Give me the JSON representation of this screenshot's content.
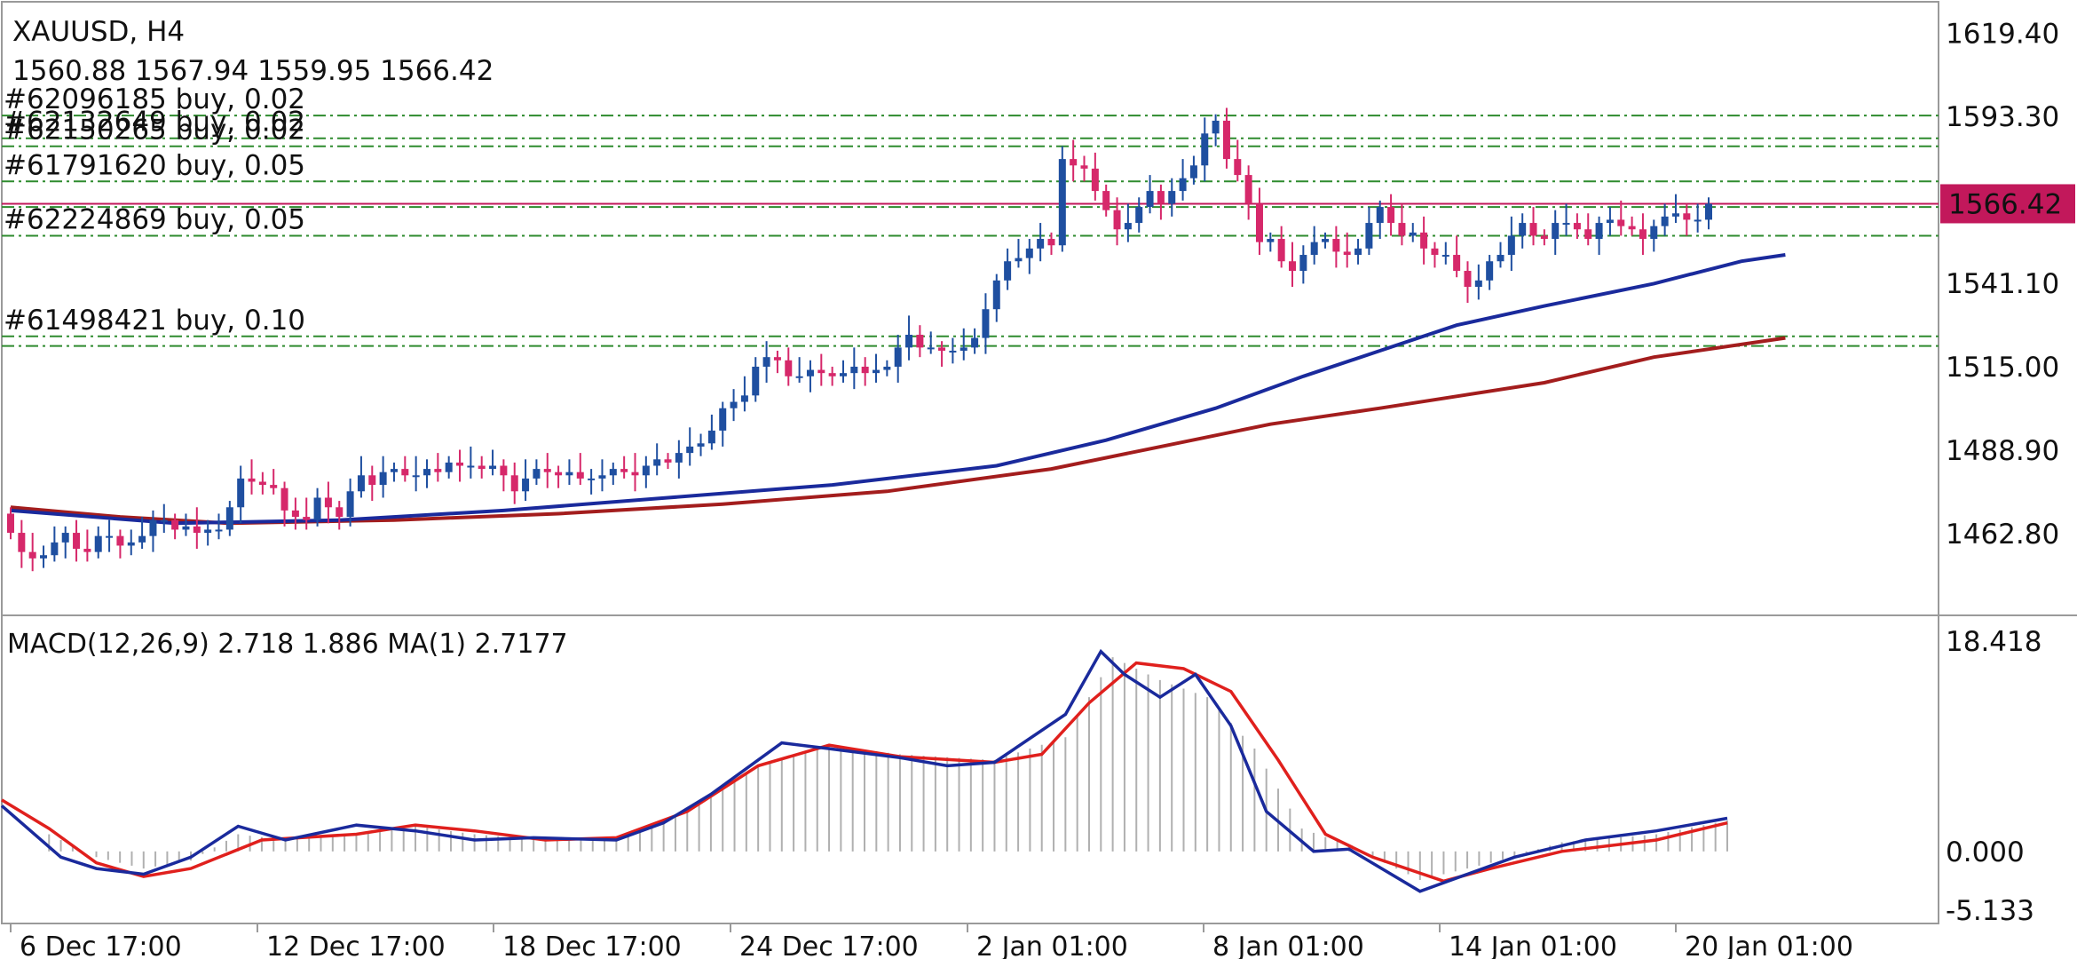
{
  "chart_data": [
    {
      "type": "candlestick",
      "symbol_label": "XAUUSD, H4",
      "ohlc_label": "1560.88 1567.94 1559.95 1566.42",
      "last_price_label": "1566.42",
      "x_tick_labels": [
        "6 Dec 17:00",
        "12 Dec 17:00",
        "18 Dec 17:00",
        "24 Dec 17:00",
        "2 Jan 01:00",
        "8 Jan 01:00",
        "14 Jan 01:00",
        "20 Jan 01:00"
      ],
      "y_tick_labels": [
        "1619.40",
        "1593.30",
        "1566.42",
        "1541.10",
        "1515.00",
        "1488.90",
        "1462.80"
      ],
      "y_range": [
        1438,
        1627
      ],
      "colors": {
        "bull": "#1f4fa0",
        "bear": "#d6286a",
        "ma_fast": "#1a2a9c",
        "ma_slow": "#a31d1d",
        "order_line": "#2e8b2e",
        "price_line": "#c2185b"
      },
      "orders": [
        {
          "label": "#62096185 buy, 0.02",
          "price": 1593.6
        },
        {
          "label": "#62132649 buy, 0.02",
          "price": 1586.5
        },
        {
          "label": "#62150265 buy, 0.02",
          "price": 1584.0
        },
        {
          "label": "#61791620 buy, 0.05",
          "price": 1573.0
        },
        {
          "label": "#62224869 buy, 0.05",
          "price": 1556.0
        },
        {
          "label": "#61498421 buy, 0.10",
          "price": 1524.5
        }
      ],
      "extra_order_prices": [
        1565.0,
        1521.5
      ],
      "candles_close": [
        1463,
        1457,
        1455,
        1456,
        1460,
        1463,
        1458,
        1457,
        1462,
        1462,
        1459,
        1460,
        1462,
        1467,
        1467,
        1464,
        1465,
        1463,
        1464,
        1464,
        1471,
        1480,
        1479,
        1478,
        1477,
        1470,
        1468,
        1467,
        1474,
        1471,
        1468,
        1476,
        1481,
        1478,
        1482,
        1483,
        1481,
        1481,
        1483,
        1482,
        1485,
        1484,
        1484,
        1483,
        1484,
        1481,
        1476,
        1480,
        1483,
        1482,
        1481,
        1482,
        1480,
        1480,
        1481,
        1483,
        1482,
        1481,
        1484,
        1486,
        1485,
        1488,
        1490,
        1491,
        1495,
        1502,
        1504,
        1506,
        1515,
        1518,
        1517,
        1512,
        1512,
        1514,
        1513,
        1512,
        1513,
        1515,
        1513,
        1514,
        1515,
        1521,
        1525,
        1521,
        1521,
        1520,
        1520,
        1521,
        1524,
        1533,
        1542,
        1548,
        1549,
        1552,
        1555,
        1553,
        1580,
        1578,
        1577,
        1570,
        1564,
        1558,
        1560,
        1565,
        1570,
        1566,
        1570,
        1574,
        1578,
        1588,
        1592,
        1580,
        1575,
        1566,
        1554,
        1555,
        1548,
        1545,
        1550,
        1554,
        1555,
        1551,
        1550,
        1552,
        1560,
        1565,
        1560,
        1556,
        1557,
        1552,
        1550,
        1550,
        1545,
        1540,
        1542,
        1548,
        1550,
        1556,
        1560,
        1556,
        1555,
        1560,
        1560,
        1558,
        1555,
        1560,
        1561,
        1559,
        1558,
        1555,
        1559,
        1562,
        1563,
        1561,
        1561,
        1566
      ],
      "ma_fast": [
        [
          0,
          1470
        ],
        [
          15,
          1466
        ],
        [
          30,
          1467
        ],
        [
          45,
          1470
        ],
        [
          60,
          1474
        ],
        [
          75,
          1478
        ],
        [
          90,
          1484
        ],
        [
          100,
          1492
        ],
        [
          110,
          1502
        ],
        [
          118,
          1512
        ],
        [
          125,
          1520
        ],
        [
          132,
          1528
        ],
        [
          140,
          1534
        ],
        [
          150,
          1541
        ],
        [
          158,
          1548
        ],
        [
          162,
          1550
        ]
      ],
      "ma_slow": [
        [
          0,
          1471
        ],
        [
          10,
          1468
        ],
        [
          20,
          1466
        ],
        [
          35,
          1467
        ],
        [
          50,
          1469
        ],
        [
          65,
          1472
        ],
        [
          80,
          1476
        ],
        [
          95,
          1483
        ],
        [
          105,
          1490
        ],
        [
          115,
          1497
        ],
        [
          125,
          1502
        ],
        [
          140,
          1510
        ],
        [
          150,
          1518
        ],
        [
          162,
          1524
        ]
      ]
    },
    {
      "type": "macd",
      "label": "MACD(12,26,9) 2.718 1.886 MA(1) 2.7177",
      "y_tick_labels": [
        "18.418",
        "0.000",
        "-5.133"
      ],
      "y_range": [
        -6,
        19.5
      ],
      "macd": [
        [
          0,
          4.0
        ],
        [
          5,
          -0.5
        ],
        [
          8,
          -1.5
        ],
        [
          12,
          -2.0
        ],
        [
          16,
          -0.5
        ],
        [
          20,
          2.2
        ],
        [
          24,
          1.0
        ],
        [
          30,
          2.3
        ],
        [
          35,
          1.8
        ],
        [
          40,
          1.0
        ],
        [
          45,
          1.2
        ],
        [
          52,
          1.0
        ],
        [
          56,
          2.5
        ],
        [
          60,
          5.0
        ],
        [
          66,
          9.5
        ],
        [
          70,
          9.0
        ],
        [
          76,
          8.2
        ],
        [
          80,
          7.5
        ],
        [
          84,
          7.8
        ],
        [
          90,
          12.0
        ],
        [
          93,
          17.5
        ],
        [
          95,
          15.5
        ],
        [
          98,
          13.5
        ],
        [
          101,
          15.5
        ],
        [
          104,
          11.0
        ],
        [
          107,
          3.5
        ],
        [
          111,
          0.0
        ],
        [
          114,
          0.2
        ],
        [
          120,
          -3.5
        ],
        [
          124,
          -2.0
        ],
        [
          128,
          -0.5
        ],
        [
          134,
          1.0
        ],
        [
          140,
          1.8
        ],
        [
          146,
          2.9
        ]
      ],
      "signal": [
        [
          0,
          4.5
        ],
        [
          4,
          2.0
        ],
        [
          8,
          -1.0
        ],
        [
          12,
          -2.2
        ],
        [
          16,
          -1.5
        ],
        [
          22,
          1.0
        ],
        [
          30,
          1.5
        ],
        [
          35,
          2.3
        ],
        [
          40,
          1.8
        ],
        [
          46,
          1.0
        ],
        [
          52,
          1.2
        ],
        [
          58,
          3.5
        ],
        [
          64,
          7.5
        ],
        [
          70,
          9.3
        ],
        [
          76,
          8.3
        ],
        [
          84,
          7.8
        ],
        [
          88,
          8.5
        ],
        [
          92,
          13.0
        ],
        [
          96,
          16.5
        ],
        [
          100,
          16.0
        ],
        [
          104,
          14.0
        ],
        [
          108,
          8.0
        ],
        [
          112,
          1.5
        ],
        [
          116,
          -0.5
        ],
        [
          122,
          -2.6
        ],
        [
          126,
          -1.5
        ],
        [
          132,
          0.0
        ],
        [
          140,
          1.0
        ],
        [
          146,
          2.5
        ]
      ],
      "histogram": [
        [
          0,
          3.0
        ],
        [
          4,
          1.5
        ],
        [
          8,
          -0.5
        ],
        [
          12,
          -1.5
        ],
        [
          16,
          -0.8
        ],
        [
          20,
          1.5
        ],
        [
          24,
          1.0
        ],
        [
          30,
          1.5
        ],
        [
          35,
          2.2
        ],
        [
          40,
          1.5
        ],
        [
          46,
          1.0
        ],
        [
          52,
          1.2
        ],
        [
          58,
          3.5
        ],
        [
          64,
          7.5
        ],
        [
          70,
          9.3
        ],
        [
          76,
          8.5
        ],
        [
          84,
          8.0
        ],
        [
          90,
          10.0
        ],
        [
          94,
          17.0
        ],
        [
          98,
          15.0
        ],
        [
          102,
          13.5
        ],
        [
          106,
          9.0
        ],
        [
          110,
          2.0
        ],
        [
          114,
          0.5
        ],
        [
          120,
          -2.5
        ],
        [
          126,
          -1.0
        ],
        [
          132,
          0.8
        ],
        [
          140,
          1.5
        ],
        [
          146,
          2.7
        ]
      ]
    }
  ]
}
